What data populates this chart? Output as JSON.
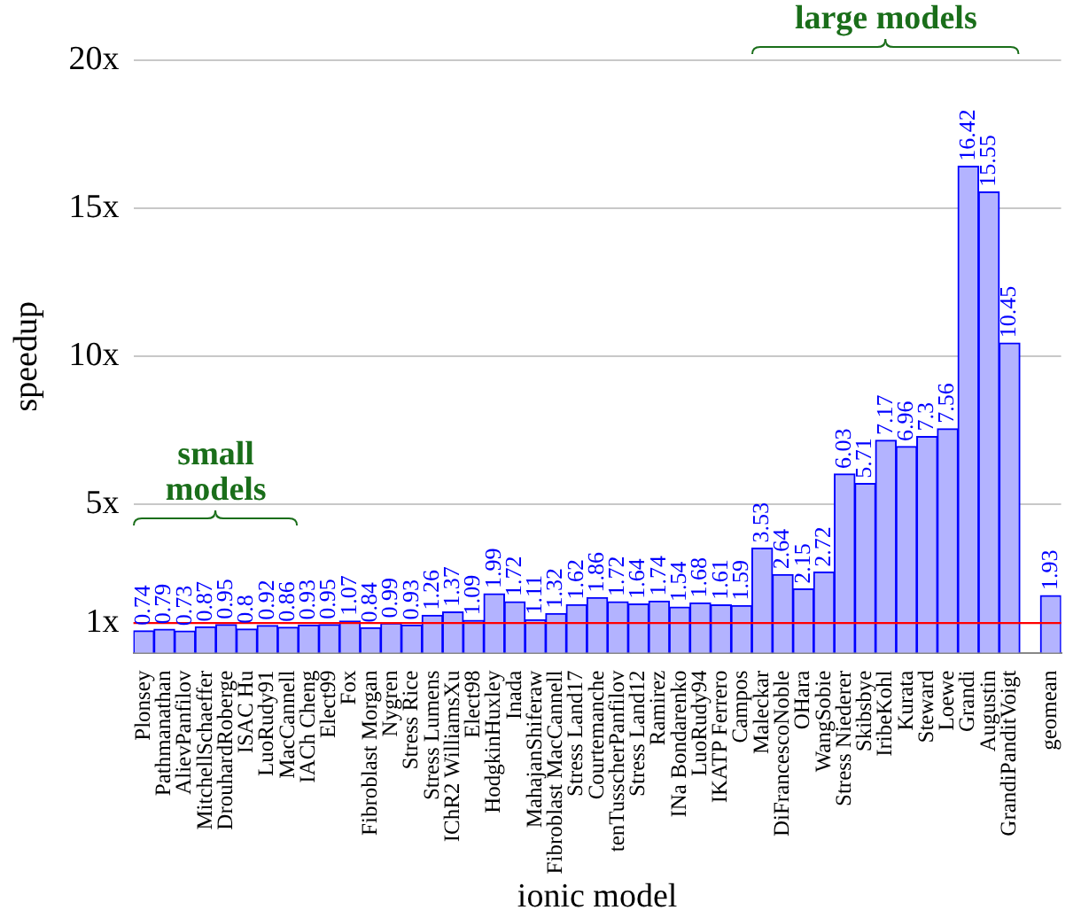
{
  "chart_data": {
    "type": "bar",
    "xlabel": "ionic model",
    "ylabel": "speedup",
    "categories": [
      "Plonsey",
      "Pathmanathan",
      "AlievPanfilov",
      "MitchellSchaeffer",
      "DrouhardRoberge",
      "ISAC Hu",
      "LuoRudy91",
      "MacCannell",
      "IACh Cheng",
      "Elect99",
      "Fox",
      "Fibroblast Morgan",
      "Nygren",
      "Stress Rice",
      "Stress Lumens",
      "IChR2 WilliamsXu",
      "Elect98",
      "HodgkinHuxley",
      "Inada",
      "MahajanShiferaw",
      "Fibroblast MacCannell",
      "Stress Land17",
      "Courtemanche",
      "tenTusscherPanfilov",
      "Stress Land12",
      "Ramirez",
      "INa Bondarenko",
      "LuoRudy94",
      "IKATP Ferrero",
      "Campos",
      "Maleckar",
      "DiFrancescoNoble",
      "OHara",
      "WangSobie",
      "Stress Niederer",
      "Skibsbye",
      "IribeKohl",
      "Kurata",
      "Steward",
      "Loewe",
      "Grandi",
      "Augustin",
      "GrandiPanditVoigt",
      null,
      "geomean"
    ],
    "values": [
      0.74,
      0.79,
      0.73,
      0.87,
      0.95,
      0.8,
      0.92,
      0.86,
      0.93,
      0.95,
      1.07,
      0.84,
      0.99,
      0.93,
      1.26,
      1.37,
      1.09,
      1.99,
      1.72,
      1.11,
      1.32,
      1.62,
      1.86,
      1.72,
      1.64,
      1.74,
      1.54,
      1.68,
      1.61,
      1.59,
      3.53,
      2.64,
      2.15,
      2.72,
      6.03,
      5.71,
      7.17,
      6.96,
      7.3,
      7.56,
      16.42,
      15.55,
      10.45,
      null,
      1.93
    ],
    "color": "#b3b3ff",
    "data_labels": true,
    "ylim": [
      0,
      20
    ],
    "yticks": [
      {
        "value": 1,
        "label": "1x"
      },
      {
        "value": 5,
        "label": "5x"
      },
      {
        "value": 10,
        "label": "10x"
      },
      {
        "value": 15,
        "label": "15x"
      },
      {
        "value": 20,
        "label": "20x"
      }
    ],
    "grid": "y",
    "legend": false,
    "ref_lines": [
      {
        "axis": "y",
        "value": 1,
        "color": "#ff0000"
      }
    ],
    "annotations": [
      "small models",
      "large models"
    ]
  }
}
